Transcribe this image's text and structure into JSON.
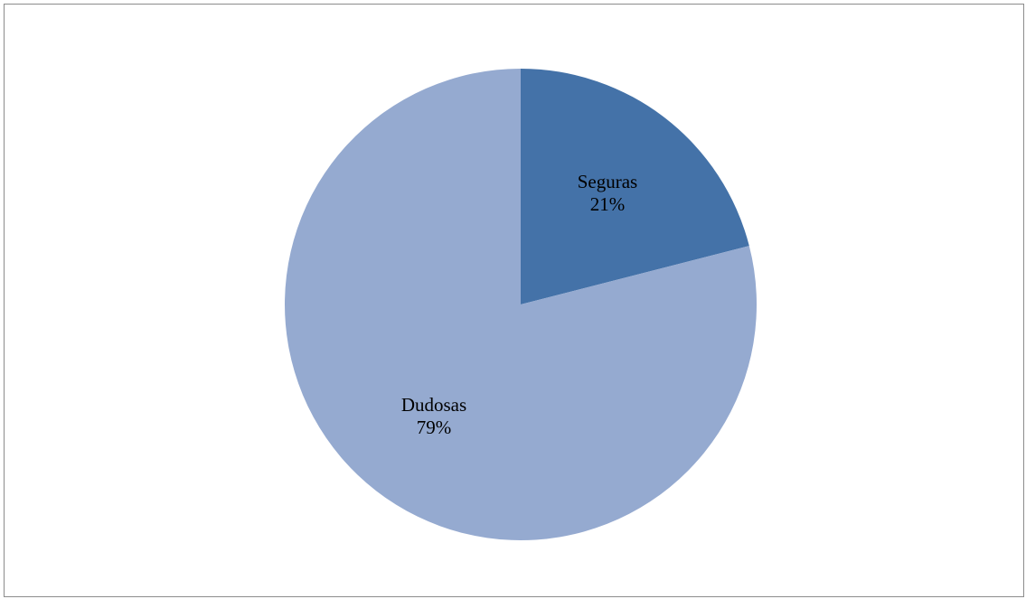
{
  "chart_data": {
    "type": "pie",
    "title": "",
    "start_angle_deg": 0,
    "direction": "clockwise",
    "slices": [
      {
        "label": "Seguras",
        "value": 21,
        "value_label": "21%",
        "color": "#4472a8"
      },
      {
        "label": "Dudosas",
        "value": 79,
        "value_label": "79%",
        "color": "#95aad0"
      }
    ],
    "legend": "none",
    "labels": "inside"
  }
}
